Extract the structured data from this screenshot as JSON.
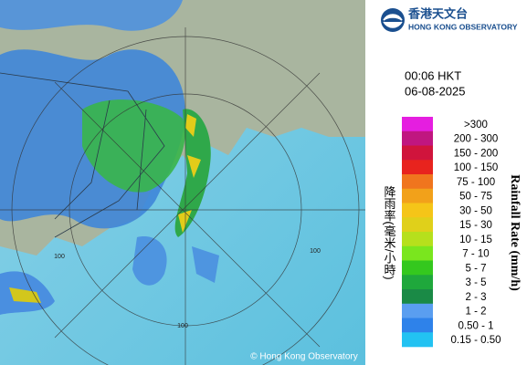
{
  "logo": {
    "chinese": "香港天文台",
    "english": "HONG KONG OBSERVATORY"
  },
  "time": "00:06 HKT",
  "date": "06-08-2025",
  "axis_title_chinese": "降雨率(毫米/小時)",
  "axis_title_english": "Rainfall Rate (mm/h)",
  "legend": [
    {
      "label": ">300",
      "color": "#e51ee0"
    },
    {
      "label": "200 - 300",
      "color": "#c01680"
    },
    {
      "label": "150 - 200",
      "color": "#d0143c"
    },
    {
      "label": "100 - 150",
      "color": "#e8231e"
    },
    {
      "label": "75 - 100",
      "color": "#f0751e"
    },
    {
      "label": "50 - 75",
      "color": "#f2a11a"
    },
    {
      "label": "30 - 50",
      "color": "#f5c518"
    },
    {
      "label": "15 - 30",
      "color": "#e0d01a"
    },
    {
      "label": "10 - 15",
      "color": "#b6e01c"
    },
    {
      "label": "7 - 10",
      "color": "#7ae61e"
    },
    {
      "label": "5 - 7",
      "color": "#34c81e"
    },
    {
      "label": "3 - 5",
      "color": "#1fa83c"
    },
    {
      "label": "2 - 3",
      "color": "#1a8a46"
    },
    {
      "label": "1 - 2",
      "color": "#5a9ef0"
    },
    {
      "label": "0.50 - 1",
      "color": "#2e82ea"
    },
    {
      "label": "0.15 - 0.50",
      "color": "#22c2f2"
    }
  ],
  "ring_labels": [
    "100",
    "100",
    "100"
  ],
  "copyright": "© Hong Kong Observatory"
}
